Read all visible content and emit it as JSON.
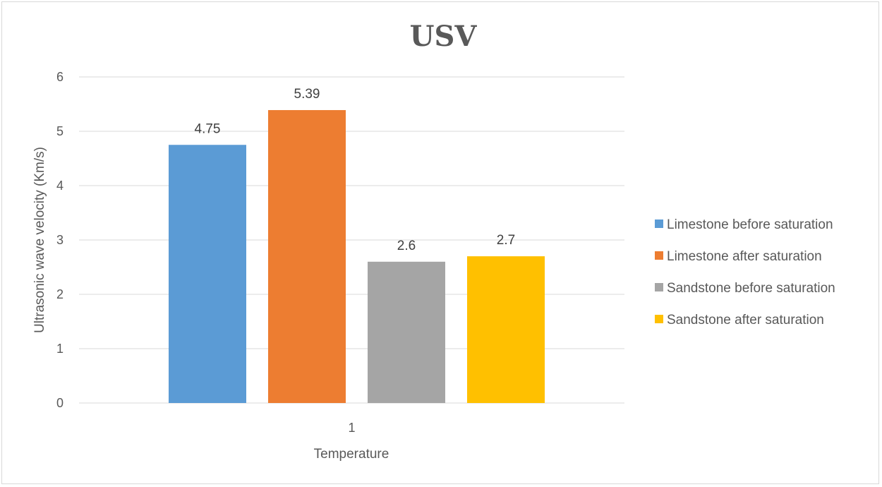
{
  "chart_data": {
    "type": "bar",
    "title": "USV",
    "xlabel": "Temperature",
    "ylabel": "Ultrasonic wave velocity (Km/s)",
    "categories": [
      "1"
    ],
    "ylim": [
      0,
      6
    ],
    "yticks": [
      0,
      1,
      2,
      3,
      4,
      5,
      6
    ],
    "grid": true,
    "legend_position": "right",
    "series": [
      {
        "name": "Limestone before saturation",
        "values": [
          4.75
        ],
        "color": "#5b9bd5",
        "label": "4.75"
      },
      {
        "name": "Limestone after saturation",
        "values": [
          5.39
        ],
        "color": "#ed7d31",
        "label": "5.39"
      },
      {
        "name": "Sandstone before saturation",
        "values": [
          2.6
        ],
        "color": "#a5a5a5",
        "label": "2.6"
      },
      {
        "name": "Sandstone after saturation",
        "values": [
          2.7
        ],
        "color": "#ffc000",
        "label": "2.7"
      }
    ]
  }
}
